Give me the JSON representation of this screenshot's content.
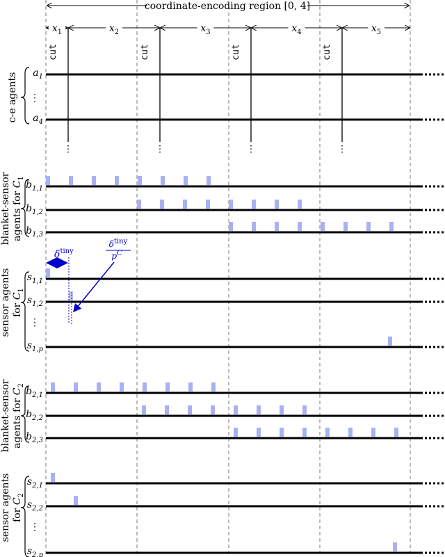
{
  "region_label": "coordinate-encoding region [0, 4]",
  "intervals": [
    {
      "base": "x",
      "sub": "1"
    },
    {
      "base": "x",
      "sub": "2"
    },
    {
      "base": "x",
      "sub": "3"
    },
    {
      "base": "x",
      "sub": "4"
    },
    {
      "base": "x",
      "sub": "5"
    }
  ],
  "cut_label": "cut",
  "groups": [
    {
      "label": [
        {
          "text": "c-e agents"
        }
      ],
      "rows": [
        {
          "base": "a",
          "sub": "1"
        },
        {
          "dots": "⋮"
        },
        {
          "base": "a",
          "sub": "4"
        }
      ]
    },
    {
      "label": [
        {
          "text": "blanket-sensor"
        },
        {
          "text": "agents for ",
          "base": "C",
          "sub": "1"
        }
      ],
      "rows": [
        {
          "base": "b",
          "sub": "1,1"
        },
        {
          "base": "b",
          "sub": "1,2"
        },
        {
          "base": "b",
          "sub": "1,3"
        }
      ]
    },
    {
      "label": [
        {
          "text": "sensor agents"
        },
        {
          "text": "for ",
          "base": "C",
          "sub": "1"
        }
      ],
      "rows": [
        {
          "base": "s",
          "sub": "1,1"
        },
        {
          "base": "s",
          "sub": "1,2"
        },
        {
          "dots": "⋮"
        },
        {
          "base": "s",
          "sub": "1,p"
        }
      ]
    },
    {
      "label": [
        {
          "text": "blanket-sensor"
        },
        {
          "text": "agents for ",
          "base": "C",
          "sub": "2"
        }
      ],
      "rows": [
        {
          "base": "b",
          "sub": "2,1"
        },
        {
          "base": "b",
          "sub": "2,2"
        },
        {
          "base": "b",
          "sub": "2,3"
        }
      ]
    },
    {
      "label": [
        {
          "text": "sensor agents"
        },
        {
          "text": "for ",
          "base": "C",
          "sub": "2"
        }
      ],
      "rows": [
        {
          "base": "s",
          "sub": "2,1"
        },
        {
          "base": "s",
          "sub": "2,2"
        },
        {
          "dots": "⋮"
        },
        {
          "base": "s",
          "sub": "2,p"
        }
      ]
    }
  ],
  "annotation": {
    "delta": {
      "base": "δ",
      "sup": "tiny"
    },
    "fraction": {
      "num_base": "δ",
      "num_sup": "tiny",
      "den_base": "p",
      "den_sup": "C"
    }
  }
}
